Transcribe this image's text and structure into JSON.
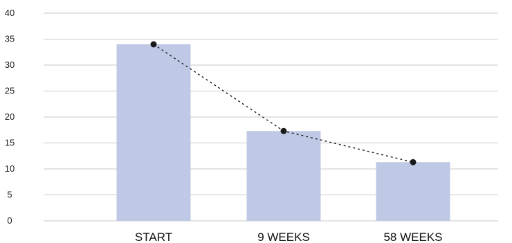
{
  "chart_data": {
    "type": "bar",
    "categories": [
      "START",
      "9 WEEKS",
      "58 WEEKS"
    ],
    "values": [
      34,
      17.3,
      11.3
    ],
    "overlay": {
      "type": "line",
      "style": "dotted",
      "marker": "circle"
    },
    "title": "",
    "xlabel": "",
    "ylabel": "",
    "ylim": [
      0,
      40
    ],
    "yticks": [
      "0",
      "5",
      "10",
      "15",
      "20",
      "25",
      "30",
      "35",
      "40"
    ],
    "grid": true,
    "legend": "none",
    "colors": {
      "bar": "#bfc9e6",
      "line": "#1a1a1a",
      "marker": "#1a1a1a",
      "grid": "#c8c8c8"
    }
  }
}
